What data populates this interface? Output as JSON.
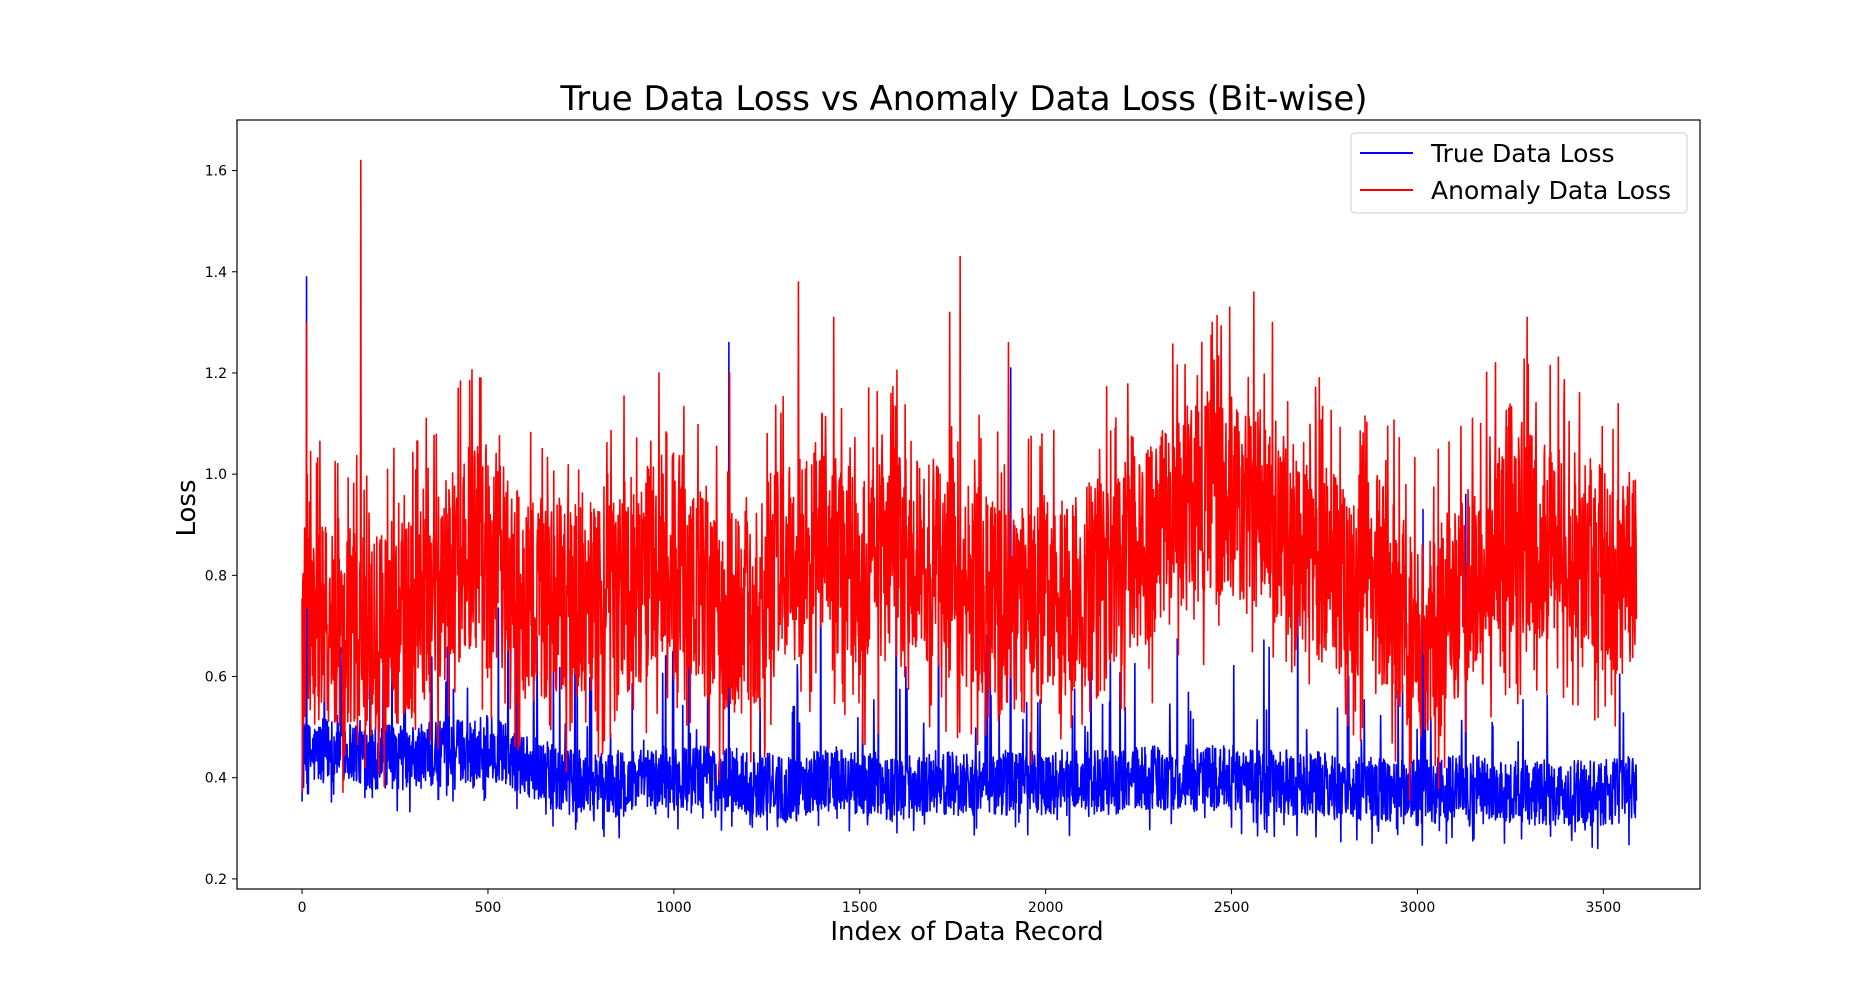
{
  "chart_data": {
    "type": "line",
    "title": "True Data Loss vs Anomaly Data Loss (Bit-wise)",
    "xlabel": "Index of Data Record",
    "ylabel": "Loss",
    "xlim": [
      -175,
      3760
    ],
    "ylim": [
      0.18,
      1.7
    ],
    "xticks": [
      0,
      500,
      1000,
      1500,
      2000,
      2500,
      3000,
      3500
    ],
    "yticks": [
      0.2,
      0.4,
      0.6,
      0.8,
      1.0,
      1.2,
      1.4,
      1.6
    ],
    "ytick_labels": [
      "0.2",
      "0.4",
      "0.6",
      "0.8",
      "1.0",
      "1.2",
      "1.4",
      "1.6"
    ],
    "grid": false,
    "legend_position": "top-right",
    "n_points": 3590,
    "series": [
      {
        "name": "True Data Loss",
        "color": "#0000ff",
        "baseline_x": [
          0,
          100,
          200,
          300,
          400,
          500,
          600,
          700,
          800,
          900,
          1000,
          1100,
          1200,
          1300,
          1400,
          1500,
          1600,
          1700,
          1800,
          1900,
          2000,
          2100,
          2200,
          2300,
          2400,
          2500,
          2600,
          2700,
          2800,
          2900,
          3000,
          3100,
          3200,
          3300,
          3400,
          3500,
          3590
        ],
        "baseline_y": [
          0.44,
          0.46,
          0.44,
          0.44,
          0.45,
          0.46,
          0.43,
          0.39,
          0.39,
          0.39,
          0.4,
          0.4,
          0.39,
          0.38,
          0.4,
          0.39,
          0.38,
          0.39,
          0.39,
          0.39,
          0.39,
          0.39,
          0.39,
          0.4,
          0.4,
          0.4,
          0.39,
          0.39,
          0.38,
          0.38,
          0.37,
          0.38,
          0.38,
          0.37,
          0.37,
          0.37,
          0.38
        ],
        "peaks": [
          [
            12,
            1.39
          ],
          [
            1148,
            1.26
          ],
          [
            1906,
            1.21
          ],
          [
            1598,
            0.98
          ],
          [
            1395,
            0.97
          ],
          [
            3130,
            0.96
          ],
          [
            3015,
            0.93
          ],
          [
            2678,
            0.86
          ],
          [
            1712,
            0.85
          ],
          [
            1040,
            0.78
          ],
          [
            395,
            0.86
          ]
        ],
        "min": 0.24
      },
      {
        "name": "Anomaly Data Loss",
        "color": "#ff0000",
        "baseline_x": [
          0,
          100,
          200,
          300,
          400,
          500,
          600,
          700,
          800,
          900,
          1000,
          1100,
          1200,
          1300,
          1400,
          1500,
          1600,
          1700,
          1800,
          1900,
          2000,
          2100,
          2200,
          2300,
          2400,
          2500,
          2600,
          2700,
          2800,
          2900,
          3000,
          3100,
          3200,
          3300,
          3400,
          3500,
          3590
        ],
        "baseline_y": [
          0.7,
          0.7,
          0.68,
          0.72,
          0.82,
          0.86,
          0.76,
          0.74,
          0.76,
          0.8,
          0.86,
          0.74,
          0.72,
          0.82,
          0.86,
          0.8,
          0.84,
          0.82,
          0.78,
          0.72,
          0.74,
          0.78,
          0.82,
          0.88,
          0.94,
          0.96,
          0.92,
          0.84,
          0.8,
          0.8,
          0.66,
          0.74,
          0.86,
          0.88,
          0.86,
          0.82,
          0.8
        ],
        "peaks": [
          [
            158,
            1.62
          ],
          [
            12,
            1.3
          ],
          [
            1770,
            1.43
          ],
          [
            1335,
            1.38
          ],
          [
            2560,
            1.36
          ],
          [
            1742,
            1.32
          ],
          [
            3295,
            1.31
          ],
          [
            2495,
            1.33
          ],
          [
            2448,
            1.3
          ],
          [
            1900,
            1.26
          ],
          [
            1430,
            1.31
          ],
          [
            2610,
            1.3
          ],
          [
            1150,
            1.2
          ],
          [
            3210,
            1.22
          ],
          [
            960,
            1.2
          ],
          [
            3170,
            1.1
          ],
          [
            420,
            1.17
          ]
        ],
        "min": 0.29
      }
    ]
  }
}
